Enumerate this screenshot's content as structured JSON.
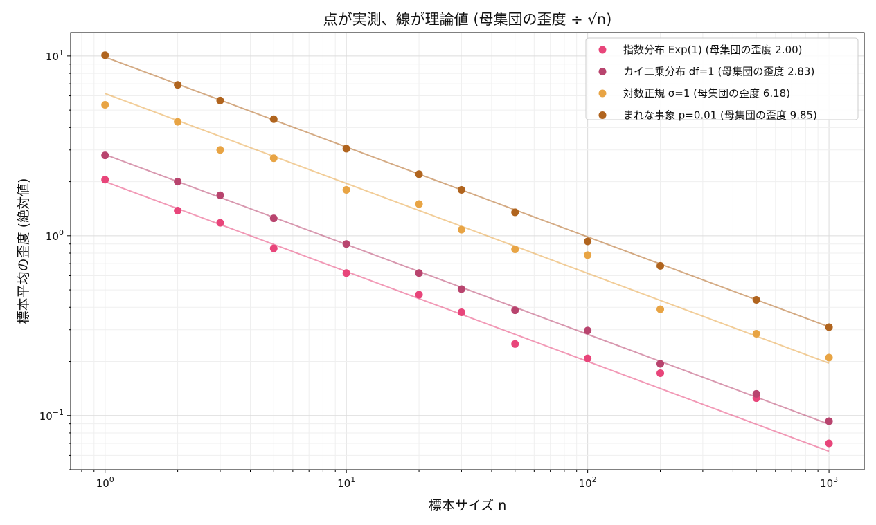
{
  "chart_data": {
    "type": "scatter",
    "title": "点が実測、線が理論値 (母集団の歪度 ÷ √n)",
    "xlabel": "標本サイズ n",
    "ylabel": "標本平均の歪度 (絶対値)",
    "xscale": "log",
    "yscale": "log",
    "xlim": [
      0.72,
      1400
    ],
    "ylim": [
      0.05,
      13.5
    ],
    "grid": true,
    "legend_position": "top-right",
    "x_tick_labels": [
      {
        "base": "10",
        "exp": "0",
        "value": 1
      },
      {
        "base": "10",
        "exp": "1",
        "value": 10
      },
      {
        "base": "10",
        "exp": "2",
        "value": 100
      },
      {
        "base": "10",
        "exp": "3",
        "value": 1000
      }
    ],
    "y_tick_labels": [
      {
        "base": "10",
        "exp": "−1",
        "value": 0.1
      },
      {
        "base": "10",
        "exp": "0",
        "value": 1
      },
      {
        "base": "10",
        "exp": "1",
        "value": 10
      }
    ],
    "x": [
      1,
      2,
      3,
      5,
      10,
      20,
      30,
      50,
      100,
      200,
      500,
      1000
    ],
    "series": [
      {
        "name": "指数分布 Exp(1) (母集団の歪度 2.00)",
        "color": "#e8457a",
        "population_skewness": 2.0,
        "values": [
          2.05,
          1.38,
          1.18,
          0.85,
          0.62,
          0.47,
          0.375,
          0.25,
          0.208,
          0.172,
          0.125,
          0.07
        ]
      },
      {
        "name": "カイ二乗分布 df=1 (母集団の歪度 2.83)",
        "color": "#b8446e",
        "population_skewness": 2.83,
        "values": [
          2.8,
          2.0,
          1.68,
          1.25,
          0.9,
          0.62,
          0.505,
          0.385,
          0.297,
          0.194,
          0.132,
          0.093
        ]
      },
      {
        "name": "対数正規 σ=1 (母集団の歪度 6.18)",
        "color": "#e8a444",
        "population_skewness": 6.18,
        "values": [
          5.35,
          4.3,
          3.0,
          2.7,
          1.8,
          1.5,
          1.08,
          0.84,
          0.78,
          0.39,
          0.285,
          0.21
        ]
      },
      {
        "name": "まれな事象 p=0.01 (母集団の歪度 9.85)",
        "color": "#b0641e",
        "population_skewness": 9.85,
        "values": [
          10.1,
          6.9,
          5.65,
          4.45,
          3.05,
          2.2,
          1.8,
          1.35,
          0.93,
          0.68,
          0.44,
          0.31
        ]
      }
    ]
  }
}
